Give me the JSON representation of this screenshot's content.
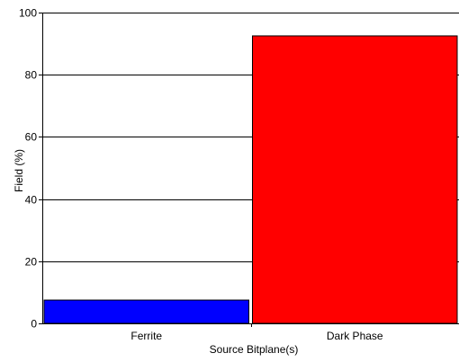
{
  "chart_data": {
    "type": "bar",
    "categories": [
      "Ferrite",
      "Dark Phase"
    ],
    "values": [
      7.5,
      92.5
    ],
    "colors": [
      "#0000ff",
      "#ff0000"
    ],
    "xlabel": "Source Bitplane(s)",
    "ylabel": "Field (%)",
    "ylim": [
      0,
      100
    ],
    "yticks": [
      0,
      20,
      40,
      60,
      80,
      100
    ],
    "yticklabels": [
      "0",
      "20",
      "40",
      "60",
      "80",
      "100"
    ],
    "grid": "horizontal",
    "legend": "none"
  }
}
